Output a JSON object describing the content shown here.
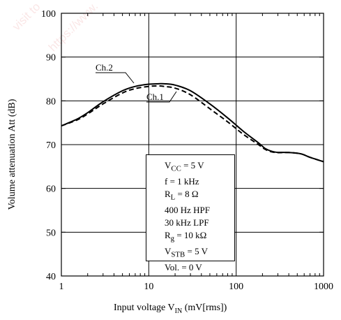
{
  "watermark": {
    "lines": [
      "visit to",
      "https://www."
    ]
  },
  "chart_data": {
    "type": "line",
    "title": "",
    "xscale": "log",
    "xlim": [
      1,
      1000
    ],
    "ylim": [
      40,
      100
    ],
    "xticks": [
      1,
      10,
      100,
      1000
    ],
    "xtick_labels": [
      "1",
      "10",
      "100",
      "1000"
    ],
    "yticks": [
      40,
      50,
      60,
      70,
      80,
      90,
      100
    ],
    "ytick_labels": [
      "40",
      "50",
      "60",
      "70",
      "80",
      "90",
      "100"
    ],
    "grid": true,
    "xlabel_parts": {
      "main": "Input voltage  V",
      "sub": "IN",
      "tail": "  (mV[rms])"
    },
    "ylabel": "Volume attenuation  Att  (dB)",
    "series": [
      {
        "name": "Ch.1",
        "style": "dashed",
        "x": [
          1,
          1.5,
          2,
          3,
          5,
          7,
          10,
          13,
          15,
          20,
          30,
          50,
          80,
          120,
          180,
          220,
          280,
          400,
          550,
          700,
          1000
        ],
        "y": [
          74.3,
          75.6,
          77,
          79.3,
          81.8,
          82.8,
          83.3,
          83.4,
          83.3,
          82.9,
          81.4,
          78.2,
          75.2,
          72.4,
          70,
          68.8,
          68.2,
          68.2,
          67.9,
          67.1,
          66.1
        ]
      },
      {
        "name": "Ch.2",
        "style": "solid",
        "x": [
          1,
          1.5,
          2,
          3,
          5,
          7,
          10,
          13,
          15,
          20,
          30,
          50,
          80,
          120,
          180,
          220,
          280,
          400,
          550,
          700,
          1000
        ],
        "y": [
          74.3,
          75.8,
          77.3,
          79.8,
          82.3,
          83.3,
          83.8,
          83.9,
          83.9,
          83.6,
          82.3,
          79.3,
          76.1,
          73.1,
          70.4,
          69,
          68.3,
          68.2,
          67.9,
          67.1,
          66.1
        ]
      }
    ],
    "series_labels": [
      {
        "text": "Ch.2",
        "series": "Ch.2"
      },
      {
        "text": "Ch.1",
        "series": "Ch.1"
      }
    ],
    "conditions": [
      {
        "main": "V",
        "sub": "CC",
        "tail": " = 5 V"
      },
      {
        "main": "f = 1 kHz",
        "sub": "",
        "tail": ""
      },
      {
        "main": "R",
        "sub": "L",
        "tail": " = 8 Ω"
      },
      {
        "main": "400 Hz HPF",
        "sub": "",
        "tail": ""
      },
      {
        "main": "30 kHz LPF",
        "sub": "",
        "tail": ""
      },
      {
        "main": "R",
        "sub": "g",
        "tail": " = 10 kΩ"
      },
      {
        "main": "V",
        "sub": "STB",
        "tail": " = 5 V"
      },
      {
        "main": "Vol. = 0 V",
        "sub": "",
        "tail": ""
      }
    ]
  }
}
